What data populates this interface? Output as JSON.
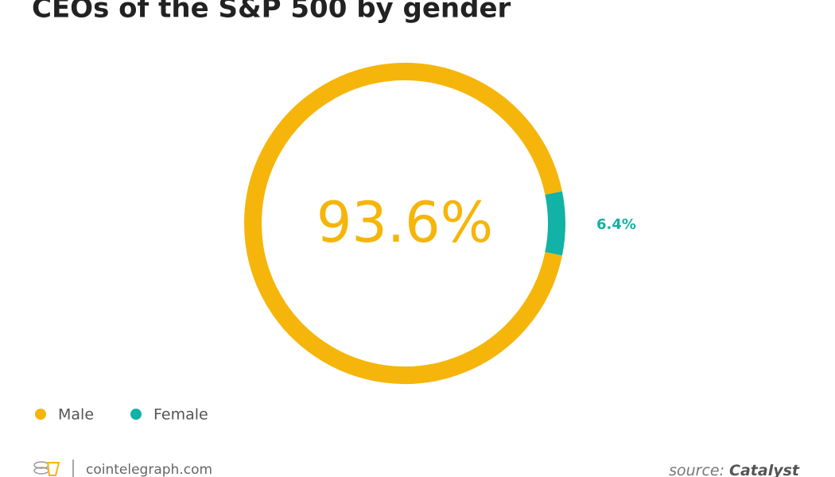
{
  "chart_data": {
    "type": "donut",
    "title": "CEOs of the S&P 500 by gender",
    "categories": [
      "Male",
      "Female"
    ],
    "values": [
      93.6,
      6.4
    ],
    "value_labels": [
      "93.6%",
      "6.4%"
    ],
    "colors": [
      "#f5b50a",
      "#12b2a6"
    ],
    "legend": "bottom-left",
    "footer": "cointelegraph.com",
    "source_label": "source:",
    "source": "Catalyst"
  }
}
